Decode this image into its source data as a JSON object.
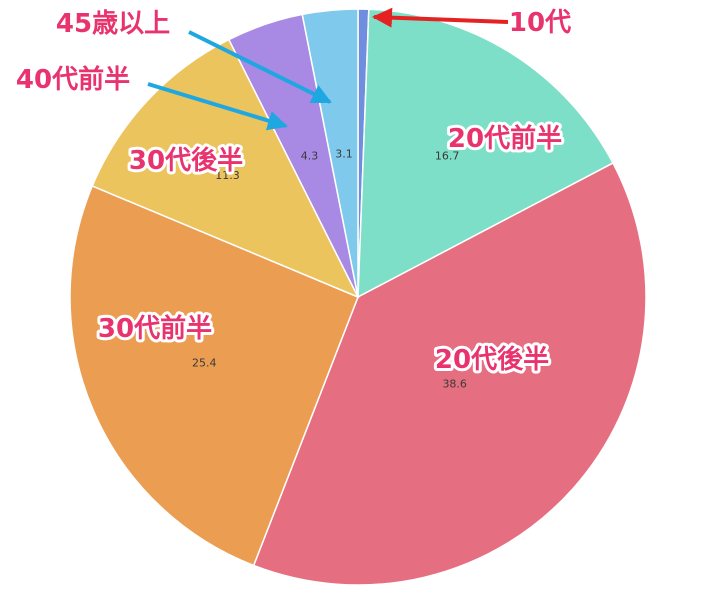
{
  "chart_data": {
    "type": "pie",
    "title": "",
    "start": "top",
    "direction": "clockwise",
    "slices": [
      {
        "label": "10代",
        "value": 0.6,
        "display": "",
        "color": "#6f8fde"
      },
      {
        "label": "20代前半",
        "value": 16.7,
        "display": "16.7",
        "color": "#7ddfc8"
      },
      {
        "label": "20代後半",
        "value": 38.6,
        "display": "38.6",
        "color": "#e56f80"
      },
      {
        "label": "30代前半",
        "value": 25.4,
        "display": "25.4",
        "color": "#eb9d52"
      },
      {
        "label": "30代後半",
        "value": 11.3,
        "display": "11.3",
        "color": "#ecc45d"
      },
      {
        "label": "40代前半",
        "value": 4.3,
        "display": "4.3",
        "color": "#a889e3"
      },
      {
        "label": "45歳以上",
        "value": 3.1,
        "display": "3.1",
        "color": "#7fcaec"
      }
    ],
    "arrow_colors": {
      "red": "#e52121",
      "blue": "#1ea7e0"
    }
  }
}
